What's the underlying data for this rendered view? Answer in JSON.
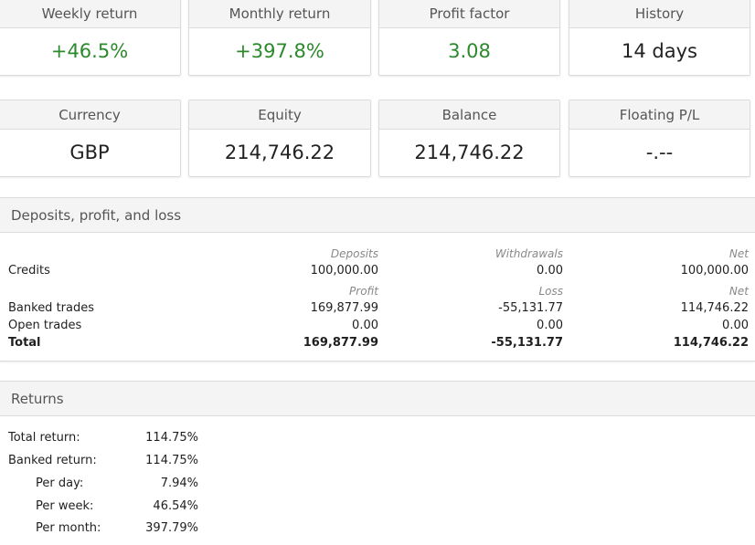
{
  "stats": [
    {
      "label": "Weekly return",
      "value": "+46.5%",
      "positive": true
    },
    {
      "label": "Monthly return",
      "value": "+397.8%",
      "positive": true
    },
    {
      "label": "Profit factor",
      "value": "3.08",
      "positive": true
    },
    {
      "label": "History",
      "value": "14 days",
      "positive": false
    },
    {
      "label": "Currency",
      "value": "GBP",
      "positive": false
    },
    {
      "label": "Equity",
      "value": "214,746.22",
      "positive": false
    },
    {
      "label": "Balance",
      "value": "214,746.22",
      "positive": false
    },
    {
      "label": "Floating P/L",
      "value": "-.--",
      "positive": false
    }
  ],
  "deposits": {
    "title": "Deposits, profit, and loss",
    "header1": {
      "c1": "Deposits",
      "c2": "Withdrawals",
      "c3": "Net"
    },
    "credits": {
      "label": "Credits",
      "c1": "100,000.00",
      "c2": "0.00",
      "c3": "100,000.00"
    },
    "header2": {
      "c1": "Profit",
      "c2": "Loss",
      "c3": "Net"
    },
    "banked": {
      "label": "Banked trades",
      "c1": "169,877.99",
      "c2": "-55,131.77",
      "c3": "114,746.22"
    },
    "open": {
      "label": "Open trades",
      "c1": "0.00",
      "c2": "0.00",
      "c3": "0.00"
    },
    "total": {
      "label": "Total",
      "c1": "169,877.99",
      "c2": "-55,131.77",
      "c3": "114,746.22"
    }
  },
  "returns": {
    "title": "Returns",
    "total": {
      "label": "Total return:",
      "value": "114.75%"
    },
    "banked": {
      "label": "Banked return:",
      "value": "114.75%"
    },
    "per_day": {
      "label": "Per day:",
      "value": "7.94%"
    },
    "per_week": {
      "label": "Per week:",
      "value": "46.54%"
    },
    "per_month": {
      "label": "Per month:",
      "value": "397.79%"
    }
  }
}
